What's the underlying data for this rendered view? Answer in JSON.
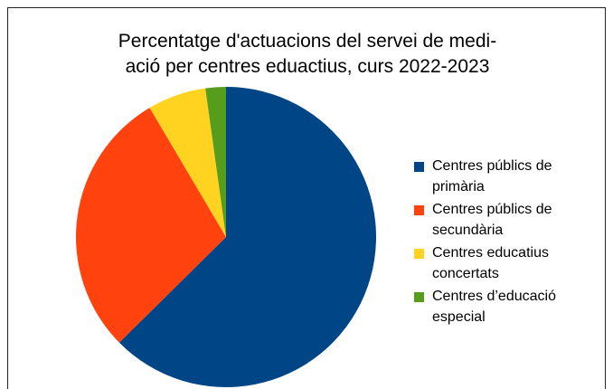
{
  "chart_data": {
    "type": "pie",
    "title": [
      "Percentatge d'actuacions del servei de medi-",
      "ació per centres eduactius, curs 2022-2023"
    ],
    "categories": [
      "Centres públics de primària",
      "Centres públics de secundària",
      "Centres educatius concertats",
      "Centres d’educació especial"
    ],
    "values": [
      62.6,
      28.9,
      6.3,
      2.2
    ],
    "colors": [
      "#004586",
      "#ff420e",
      "#ffd320",
      "#579d1c"
    ],
    "legend": "right"
  }
}
